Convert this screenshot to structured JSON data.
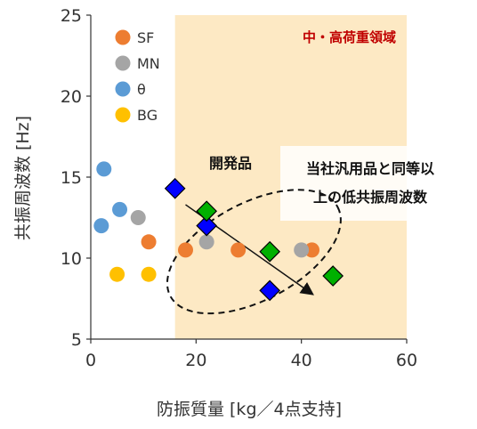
{
  "chart_data": {
    "type": "scatter",
    "xlabel": "防振質量 [kg／4点支持]",
    "ylabel": "共振周波数 [Hz]",
    "xlim": [
      0,
      60
    ],
    "ylim": [
      5,
      25
    ],
    "xticks": [
      0,
      20,
      40,
      60
    ],
    "yticks": [
      5,
      10,
      15,
      20,
      25
    ],
    "grid": false,
    "legend_position": "top-left",
    "zone": {
      "x_from": 16,
      "x_to": 60,
      "label": "中・高荷重領域",
      "color": "#fde9c4"
    },
    "series": [
      {
        "name": "SF",
        "marker": "circle",
        "color": "#ed7d31",
        "points": [
          [
            11,
            11
          ],
          [
            18,
            10.5
          ],
          [
            28,
            10.5
          ],
          [
            42,
            10.5
          ]
        ]
      },
      {
        "name": "MN",
        "marker": "circle",
        "color": "#a5a5a5",
        "points": [
          [
            9,
            12.5
          ],
          [
            22,
            11
          ],
          [
            40,
            10.5
          ]
        ]
      },
      {
        "name": "θ",
        "marker": "circle",
        "color": "#5b9bd5",
        "points": [
          [
            2.5,
            15.5
          ],
          [
            5.5,
            13
          ],
          [
            2,
            12
          ]
        ]
      },
      {
        "name": "BG",
        "marker": "circle",
        "color": "#ffc000",
        "points": [
          [
            5,
            9
          ],
          [
            11,
            9
          ]
        ]
      },
      {
        "name": "",
        "marker": "diamond",
        "color": "#0000ff",
        "points": [
          [
            16,
            14.3
          ],
          [
            22,
            12
          ],
          [
            34,
            8
          ]
        ]
      },
      {
        "name": "",
        "marker": "diamond",
        "color": "#00b000",
        "points": [
          [
            22,
            12.9
          ],
          [
            34,
            10.4
          ],
          [
            46,
            8.9
          ]
        ]
      }
    ],
    "annotations": {
      "product_label": "開発品",
      "note_line1": "当社汎用品と同等以",
      "note_line2": "上の低共振周波数",
      "ellipse": {
        "cx": 31,
        "cy": 10.4,
        "rx": 18,
        "ry_deg": 3.0,
        "angle": -28
      },
      "arrow": {
        "from": [
          18,
          13.3
        ],
        "to": [
          42,
          7.8
        ]
      }
    }
  }
}
